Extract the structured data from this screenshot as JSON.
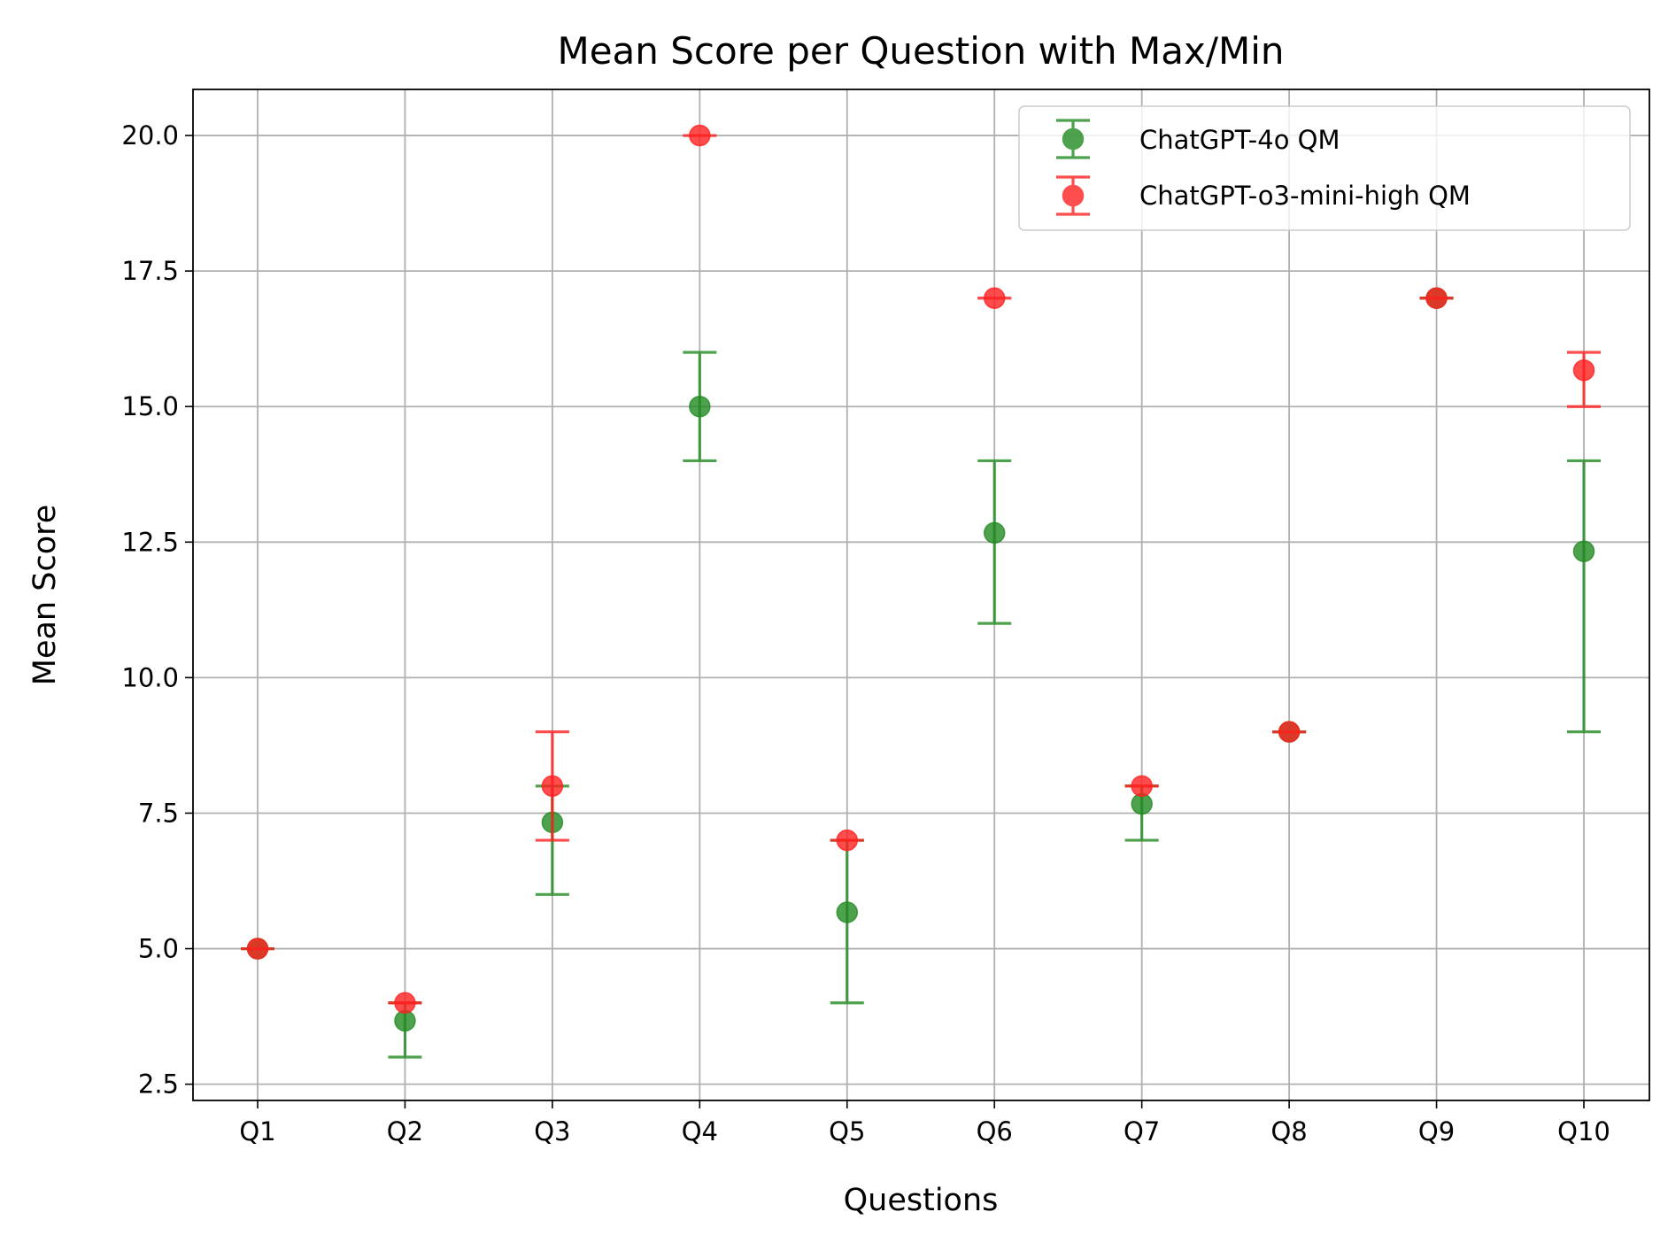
{
  "chart_data": {
    "type": "scatter",
    "title": "Mean Score per Question with Max/Min",
    "xlabel": "Questions",
    "ylabel": "Mean Score",
    "categories": [
      "Q1",
      "Q2",
      "Q3",
      "Q4",
      "Q5",
      "Q6",
      "Q7",
      "Q8",
      "Q9",
      "Q10"
    ],
    "ylim": [
      2.2,
      20.85
    ],
    "yticks": [
      "2.5",
      "5.0",
      "7.5",
      "10.0",
      "12.5",
      "15.0",
      "17.5",
      "20.0"
    ],
    "grid": true,
    "legend_position": "top-right",
    "series": [
      {
        "name": "ChatGPT-4o QM",
        "color": "#228b22",
        "mean": [
          5.0,
          3.67,
          7.33,
          15.0,
          5.67,
          12.67,
          7.67,
          9.0,
          17.0,
          12.33
        ],
        "min": [
          5.0,
          3.0,
          6.0,
          14.0,
          4.0,
          11.0,
          7.0,
          9.0,
          17.0,
          9.0
        ],
        "max": [
          5.0,
          4.0,
          8.0,
          16.0,
          7.0,
          14.0,
          8.0,
          9.0,
          17.0,
          14.0
        ]
      },
      {
        "name": "ChatGPT-o3-mini-high QM",
        "color": "#ff2020",
        "mean": [
          5.0,
          4.0,
          8.0,
          20.0,
          7.0,
          17.0,
          8.0,
          9.0,
          17.0,
          15.67
        ],
        "min": [
          5.0,
          4.0,
          7.0,
          20.0,
          7.0,
          17.0,
          8.0,
          9.0,
          17.0,
          15.0
        ],
        "max": [
          5.0,
          4.0,
          9.0,
          20.0,
          7.0,
          17.0,
          8.0,
          9.0,
          17.0,
          16.0
        ]
      }
    ]
  }
}
